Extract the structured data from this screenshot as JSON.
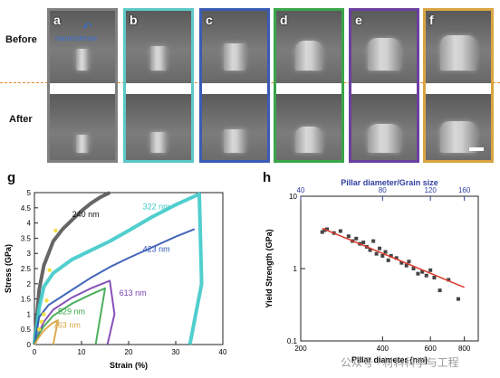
{
  "figure": {
    "row_labels": {
      "before": "Before",
      "after": "After"
    },
    "panels": [
      {
        "label": "a",
        "border": "#808080",
        "annotation": "nanoindenter"
      },
      {
        "label": "b",
        "border": "#5cc8c8"
      },
      {
        "label": "c",
        "border": "#3b5bb5"
      },
      {
        "label": "d",
        "border": "#3aa54a"
      },
      {
        "label": "e",
        "border": "#6b3fa0"
      },
      {
        "label": "f",
        "border": "#d9a441"
      }
    ],
    "colors": {
      "dash": "#e8862a",
      "annotation": "#3b6fd4"
    }
  },
  "chart_g": {
    "label": "g",
    "chart_data": {
      "type": "line",
      "xlabel": "Strain (%)",
      "ylabel": "Stress (GPa)",
      "xlim": [
        0,
        40
      ],
      "ylim": [
        0,
        5
      ],
      "xticks": [
        "0",
        "10",
        "20",
        "30",
        "40"
      ],
      "yticks": [
        "0",
        "0.5",
        "1",
        "1.5",
        "2",
        "2.5",
        "3",
        "3.5",
        "4",
        "4.5",
        "5"
      ],
      "series": [
        {
          "name": "240 nm",
          "color": "#555555",
          "x": [
            0,
            1,
            2,
            4,
            6,
            8,
            10,
            12,
            14,
            16
          ],
          "y": [
            0,
            1.8,
            2.6,
            3.4,
            3.8,
            4.1,
            4.4,
            4.65,
            4.85,
            5.0
          ]
        },
        {
          "name": "322 nm",
          "color": "#3ec9c9",
          "x": [
            0,
            1,
            2,
            4,
            8,
            12,
            16,
            20,
            25,
            30,
            35,
            35.5,
            33
          ],
          "y": [
            0,
            1.2,
            1.9,
            2.35,
            2.8,
            3.1,
            3.4,
            3.75,
            4.2,
            4.6,
            4.95,
            2.0,
            0
          ]
        },
        {
          "name": "423 nm",
          "color": "#2f55b0",
          "x": [
            0,
            1,
            2,
            3,
            5,
            8,
            12,
            16,
            20,
            25,
            30,
            34
          ],
          "y": [
            0,
            0.9,
            1.1,
            1.3,
            1.5,
            1.8,
            2.2,
            2.55,
            2.85,
            3.2,
            3.55,
            3.8
          ]
        },
        {
          "name": "613 nm",
          "color": "#7a3fb0",
          "x": [
            0,
            1,
            2,
            4,
            8,
            12,
            16,
            17,
            15.5
          ],
          "y": [
            0,
            0.4,
            0.75,
            1.15,
            1.55,
            1.85,
            2.1,
            1.0,
            0
          ]
        },
        {
          "name": "529 nm",
          "color": "#3aa54a",
          "x": [
            0,
            1,
            2,
            4,
            8,
            12,
            15,
            13
          ],
          "y": [
            0,
            0.35,
            0.6,
            0.95,
            1.35,
            1.65,
            1.85,
            0
          ]
        },
        {
          "name": "763 nm",
          "color": "#d9a441",
          "x": [
            0,
            1,
            2,
            3,
            4,
            5,
            4
          ],
          "y": [
            0,
            0.25,
            0.45,
            0.6,
            0.72,
            0.8,
            0
          ]
        }
      ],
      "yield_markers": {
        "color": "#f0e040",
        "x": [
          4.5,
          3.2,
          2.6,
          2.0,
          1.5,
          1.0
        ],
        "y": [
          3.75,
          2.45,
          1.45,
          1.0,
          0.75,
          0.5
        ]
      }
    }
  },
  "chart_h": {
    "label": "h",
    "chart_data": {
      "type": "scatter",
      "xlabel": "Pillar diameter (nm)",
      "ylabel": "Yield Strength (GPa)",
      "top_xlabel": "Pillar diameter/Grain size",
      "xscale": "log",
      "yscale": "log",
      "xlim": [
        200,
        900
      ],
      "ylim": [
        0.1,
        10
      ],
      "xticks": [
        "200",
        "400",
        "600",
        "800"
      ],
      "yticks": [
        "0.1",
        "1",
        "10"
      ],
      "top_xticks": [
        "40",
        "80",
        "120",
        "160"
      ],
      "points_x": [
        240,
        245,
        250,
        265,
        280,
        300,
        310,
        320,
        330,
        340,
        350,
        360,
        370,
        380,
        390,
        400,
        410,
        420,
        430,
        450,
        470,
        490,
        500,
        520,
        540,
        560,
        580,
        600,
        620,
        650,
        700,
        760
      ],
      "points_y": [
        3.2,
        3.4,
        3.5,
        3.1,
        3.3,
        2.8,
        2.4,
        2.6,
        2.2,
        2.3,
        2.0,
        1.8,
        2.4,
        1.6,
        1.9,
        1.5,
        1.7,
        1.3,
        1.5,
        1.4,
        1.2,
        1.1,
        1.25,
        1.0,
        0.85,
        0.9,
        0.8,
        0.95,
        0.75,
        0.5,
        0.7,
        0.38
      ],
      "fit": {
        "color": "#d93a2a",
        "x": [
          240,
          800
        ],
        "y": [
          3.6,
          0.55
        ]
      }
    }
  },
  "watermark": "公众号 · 材料科学与工程"
}
